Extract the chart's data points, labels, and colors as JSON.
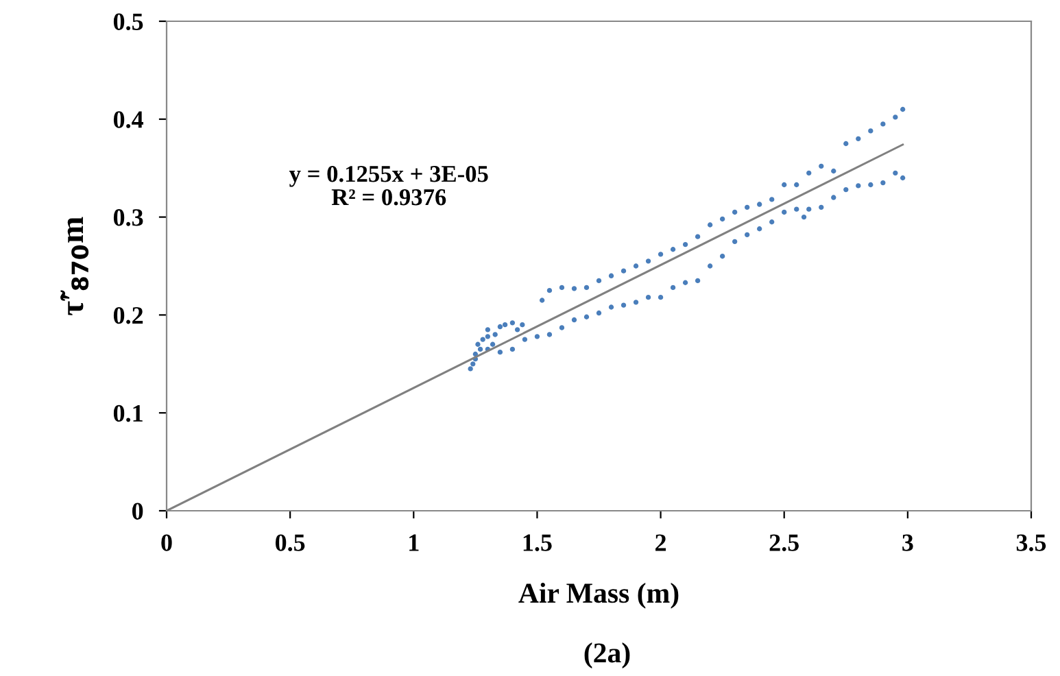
{
  "chart_data": {
    "type": "scatter",
    "xlabel": "Air Mass (m)",
    "ylabel": "τ̃′$_{870}$m",
    "annotations": [
      "y = 0.1255x + 3E-05\nR² = 0.9376",
      "(2a)"
    ],
    "xlim": [
      0,
      3.5
    ],
    "xticks": [
      0,
      0.5,
      1,
      1.5,
      2,
      2.5,
      3,
      3.5
    ],
    "ylim": [
      0,
      0.5
    ],
    "yticks": [
      0,
      0.1,
      0.2,
      0.3,
      0.4,
      0.5
    ],
    "grid": false,
    "legend": false,
    "series": [
      {
        "marker": "circle",
        "color": "#4a7ebb",
        "x": [
          1.52,
          1.55,
          1.6,
          1.65,
          1.7,
          1.75,
          1.8,
          1.85,
          1.9,
          1.95,
          2.0,
          2.05,
          2.1,
          2.15,
          2.2,
          2.25,
          2.3,
          2.35,
          2.4,
          2.45,
          2.5,
          2.55,
          2.6,
          2.65,
          2.7,
          2.75,
          2.8,
          2.85,
          2.9,
          2.95,
          2.98,
          1.25,
          1.3,
          1.35,
          1.4,
          1.45,
          1.5,
          1.55,
          1.6,
          1.65,
          1.7,
          1.75,
          1.8,
          1.85,
          1.9,
          1.95,
          2.0,
          2.05,
          2.1,
          2.15,
          2.2,
          2.25,
          2.3,
          2.35,
          2.4,
          2.45,
          2.5,
          2.55,
          2.58,
          2.6,
          2.65,
          2.7,
          2.75,
          2.8,
          2.85,
          2.9,
          2.95,
          2.98,
          1.23,
          1.24,
          1.25,
          1.26,
          1.28,
          1.3,
          1.32,
          1.33,
          1.35,
          1.37,
          1.4,
          1.42,
          1.44,
          1.27,
          1.3
        ],
        "values": [
          0.215,
          0.225,
          0.228,
          0.227,
          0.228,
          0.235,
          0.24,
          0.245,
          0.25,
          0.255,
          0.262,
          0.267,
          0.272,
          0.28,
          0.292,
          0.298,
          0.305,
          0.31,
          0.313,
          0.318,
          0.333,
          0.333,
          0.345,
          0.352,
          0.347,
          0.375,
          0.38,
          0.388,
          0.395,
          0.402,
          0.41,
          0.16,
          0.165,
          0.162,
          0.165,
          0.175,
          0.178,
          0.18,
          0.187,
          0.195,
          0.198,
          0.202,
          0.208,
          0.21,
          0.213,
          0.218,
          0.218,
          0.228,
          0.233,
          0.235,
          0.25,
          0.26,
          0.275,
          0.282,
          0.288,
          0.295,
          0.305,
          0.308,
          0.3,
          0.308,
          0.31,
          0.32,
          0.328,
          0.332,
          0.333,
          0.335,
          0.345,
          0.34,
          0.145,
          0.15,
          0.155,
          0.17,
          0.175,
          0.178,
          0.17,
          0.18,
          0.188,
          0.19,
          0.192,
          0.185,
          0.19,
          0.165,
          0.185
        ]
      },
      {
        "type": "line",
        "marker": "none",
        "color": "#808080",
        "x": [
          0,
          2.98
        ],
        "values": [
          0,
          0.374
        ]
      }
    ]
  }
}
